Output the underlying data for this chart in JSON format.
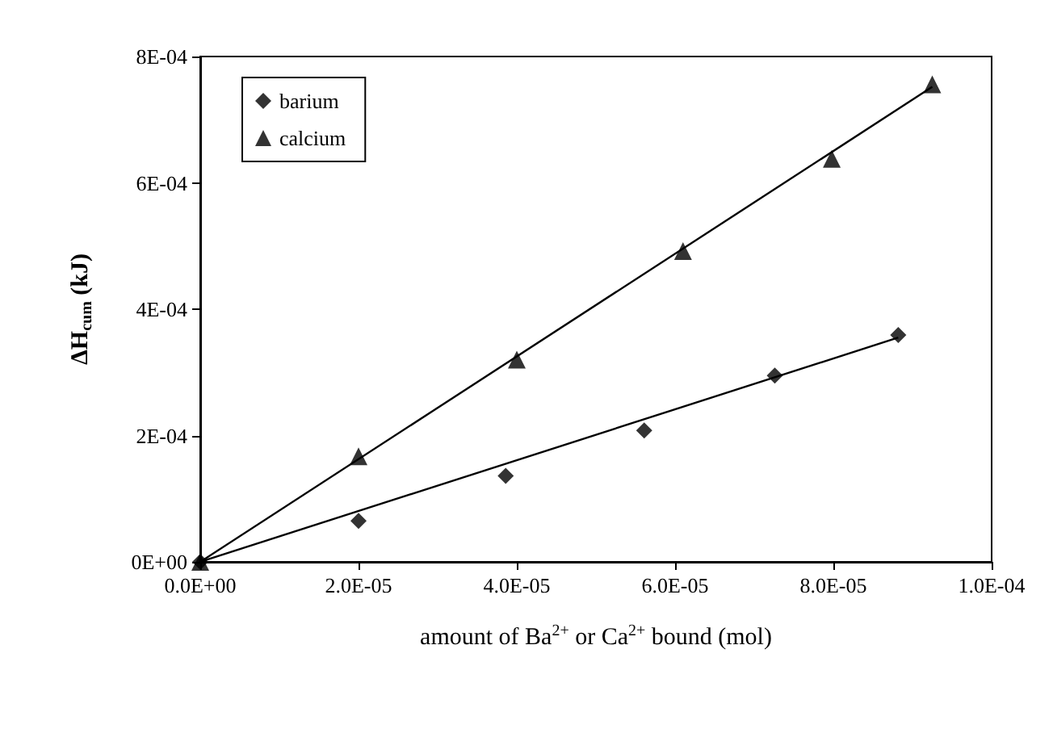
{
  "chart_data": {
    "type": "scatter",
    "xlabel": "amount of Ba$^{2+}$ or Ca$^{2+}$ bound (mol)",
    "ylabel": "ΔH$_{cum}$ (kJ)",
    "xlim": [
      0,
      0.0001
    ],
    "xticks": [
      {
        "value": 0,
        "label": "0.0E+00"
      },
      {
        "value": 2e-05,
        "label": "2.0E-05"
      },
      {
        "value": 4e-05,
        "label": "4.0E-05"
      },
      {
        "value": 6e-05,
        "label": "6.0E-05"
      },
      {
        "value": 8e-05,
        "label": "8.0E-05"
      },
      {
        "value": 0.0001,
        "label": "1.0E-04"
      }
    ],
    "ylim": [
      0,
      0.0008
    ],
    "yticks": [
      {
        "value": 0,
        "label": "0E+00"
      },
      {
        "value": 0.0002,
        "label": "2E-04"
      },
      {
        "value": 0.0004,
        "label": "4E-04"
      },
      {
        "value": 0.0006,
        "label": "6E-04"
      },
      {
        "value": 0.0008,
        "label": "8E-04"
      }
    ],
    "grid": false,
    "legend": "top left",
    "series": [
      {
        "name": "barium",
        "color": "#000000",
        "marker": "diamond",
        "x": [
          0,
          2e-05,
          3.86e-05,
          5.61e-05,
          7.26e-05,
          8.82e-05
        ],
        "values": [
          0,
          6.5e-05,
          0.000136,
          0.000208,
          0.000295,
          0.000359
        ]
      },
      {
        "name": "calcium",
        "color": "#000000",
        "marker": "triangle",
        "x": [
          0,
          2e-05,
          4e-05,
          6.1e-05,
          7.98e-05,
          9.25e-05
        ],
        "values": [
          0,
          0.000167,
          0.00032,
          0.000492,
          0.000638,
          0.000756
        ]
      },
      {
        "type": "line",
        "color": "#000000",
        "marker": "none",
        "x": [
          0,
          8.82e-05
        ],
        "values": [
          0,
          0.000355
        ]
      },
      {
        "type": "line",
        "color": "#000000",
        "marker": "none",
        "x": [
          0,
          9.25e-05
        ],
        "values": [
          0,
          0.000752
        ]
      }
    ]
  }
}
